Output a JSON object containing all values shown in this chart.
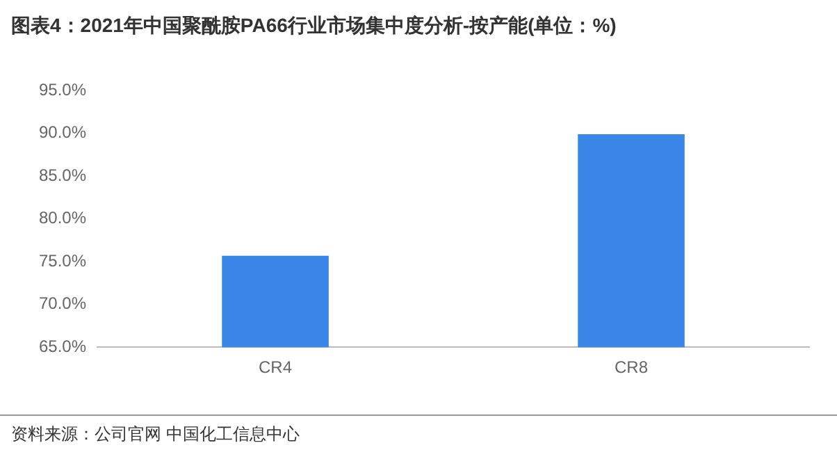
{
  "chart_data": {
    "type": "bar",
    "title": "图表4：2021年中国聚酰胺PA66行业市场集中度分析-按产能(单位：%)",
    "categories": [
      "CR4",
      "CR8"
    ],
    "values": [
      75.7,
      89.9
    ],
    "color": "#3a86e6",
    "ylim": [
      65,
      95
    ],
    "yticks": [
      {
        "value": 65,
        "label": "65.0%"
      },
      {
        "value": 70,
        "label": "70.0%"
      },
      {
        "value": 75,
        "label": "75.0%"
      },
      {
        "value": 80,
        "label": "80.0%"
      },
      {
        "value": 85,
        "label": "85.0%"
      },
      {
        "value": 90,
        "label": "90.0%"
      },
      {
        "value": 95,
        "label": "95.0%"
      }
    ],
    "grid": false,
    "legend": false,
    "annotations": [
      "资料来源：公司官网 中国化工信息中心"
    ]
  }
}
